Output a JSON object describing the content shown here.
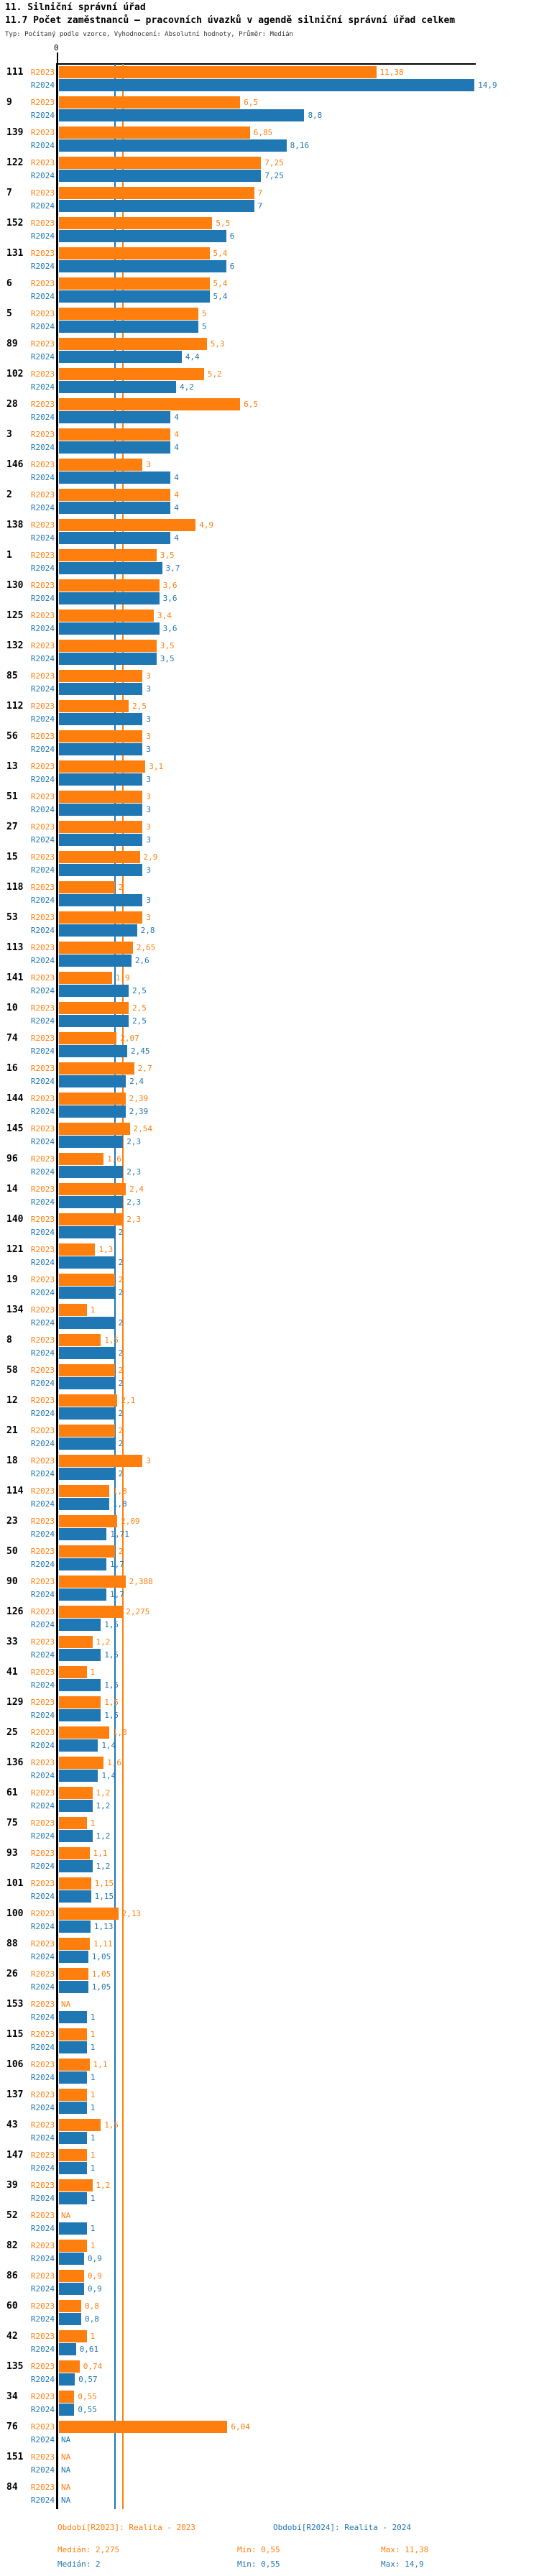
{
  "header": {
    "title": "11. Silniční správní úřad",
    "subtitle": "11.7 Počet zaměstnanců – pracovních úvazků v agendě silniční správní úřad celkem",
    "meta": "Typ: Počítaný podle vzorce, Vyhodnocení: Absolutní hodnoty, Průměr: Medián"
  },
  "chart_data": {
    "type": "bar",
    "orientation": "horizontal",
    "xlim": [
      0,
      15
    ],
    "zero_label": "0",
    "grid": false,
    "legend_position": "bottom",
    "series": [
      {
        "name": "R2023",
        "color": "#ff7f0e",
        "median": 2.275,
        "min": 0.55,
        "max": 11.38
      },
      {
        "name": "R2024",
        "color": "#1f77b4",
        "median": 2.0,
        "min": 0.55,
        "max": 14.9
      }
    ],
    "rows": [
      {
        "id": "111",
        "values": [
          11.38,
          14.9
        ],
        "labels": [
          "11,38",
          "14,9"
        ]
      },
      {
        "id": "9",
        "values": [
          6.5,
          8.8
        ],
        "labels": [
          "6,5",
          "8,8"
        ]
      },
      {
        "id": "139",
        "values": [
          6.85,
          8.16
        ],
        "labels": [
          "6,85",
          "8,16"
        ]
      },
      {
        "id": "122",
        "values": [
          7.25,
          7.25
        ],
        "labels": [
          "7,25",
          "7,25"
        ]
      },
      {
        "id": "7",
        "values": [
          7,
          7
        ],
        "labels": [
          "7",
          "7"
        ]
      },
      {
        "id": "152",
        "values": [
          5.5,
          6
        ],
        "labels": [
          "5,5",
          "6"
        ]
      },
      {
        "id": "131",
        "values": [
          5.4,
          6
        ],
        "labels": [
          "5,4",
          "6"
        ]
      },
      {
        "id": "6",
        "values": [
          5.4,
          5.4
        ],
        "labels": [
          "5,4",
          "5,4"
        ]
      },
      {
        "id": "5",
        "values": [
          5,
          5
        ],
        "labels": [
          "5",
          "5"
        ]
      },
      {
        "id": "89",
        "values": [
          5.3,
          4.4
        ],
        "labels": [
          "5,3",
          "4,4"
        ]
      },
      {
        "id": "102",
        "values": [
          5.2,
          4.2
        ],
        "labels": [
          "5,2",
          "4,2"
        ]
      },
      {
        "id": "28",
        "values": [
          6.5,
          4
        ],
        "labels": [
          "6,5",
          "4"
        ]
      },
      {
        "id": "3",
        "values": [
          4,
          4
        ],
        "labels": [
          "4",
          "4"
        ]
      },
      {
        "id": "146",
        "values": [
          3,
          4
        ],
        "labels": [
          "3",
          "4"
        ]
      },
      {
        "id": "2",
        "values": [
          4,
          4
        ],
        "labels": [
          "4",
          "4"
        ]
      },
      {
        "id": "138",
        "values": [
          4.9,
          4
        ],
        "labels": [
          "4,9",
          "4"
        ]
      },
      {
        "id": "1",
        "values": [
          3.5,
          3.7
        ],
        "labels": [
          "3,5",
          "3,7"
        ]
      },
      {
        "id": "130",
        "values": [
          3.6,
          3.6
        ],
        "labels": [
          "3,6",
          "3,6"
        ]
      },
      {
        "id": "125",
        "values": [
          3.4,
          3.6
        ],
        "labels": [
          "3,4",
          "3,6"
        ]
      },
      {
        "id": "132",
        "values": [
          3.5,
          3.5
        ],
        "labels": [
          "3,5",
          "3,5"
        ]
      },
      {
        "id": "85",
        "values": [
          3,
          3
        ],
        "labels": [
          "3",
          "3"
        ]
      },
      {
        "id": "112",
        "values": [
          2.5,
          3
        ],
        "labels": [
          "2,5",
          "3"
        ]
      },
      {
        "id": "56",
        "values": [
          3,
          3
        ],
        "labels": [
          "3",
          "3"
        ]
      },
      {
        "id": "13",
        "values": [
          3.1,
          3
        ],
        "labels": [
          "3,1",
          "3"
        ]
      },
      {
        "id": "51",
        "values": [
          3,
          3
        ],
        "labels": [
          "3",
          "3"
        ]
      },
      {
        "id": "27",
        "values": [
          3,
          3
        ],
        "labels": [
          "3",
          "3"
        ]
      },
      {
        "id": "15",
        "values": [
          2.9,
          3
        ],
        "labels": [
          "2,9",
          "3"
        ]
      },
      {
        "id": "118",
        "values": [
          2,
          3
        ],
        "labels": [
          "2",
          "3"
        ]
      },
      {
        "id": "53",
        "values": [
          3,
          2.8
        ],
        "labels": [
          "3",
          "2,8"
        ]
      },
      {
        "id": "113",
        "values": [
          2.65,
          2.6
        ],
        "labels": [
          "2,65",
          "2,6"
        ]
      },
      {
        "id": "141",
        "values": [
          1.9,
          2.5
        ],
        "labels": [
          "1,9",
          "2,5"
        ]
      },
      {
        "id": "10",
        "values": [
          2.5,
          2.5
        ],
        "labels": [
          "2,5",
          "2,5"
        ]
      },
      {
        "id": "74",
        "values": [
          2.07,
          2.45
        ],
        "labels": [
          "2,07",
          "2,45"
        ]
      },
      {
        "id": "16",
        "values": [
          2.7,
          2.4
        ],
        "labels": [
          "2,7",
          "2,4"
        ]
      },
      {
        "id": "144",
        "values": [
          2.39,
          2.39
        ],
        "labels": [
          "2,39",
          "2,39"
        ]
      },
      {
        "id": "145",
        "values": [
          2.54,
          2.3
        ],
        "labels": [
          "2,54",
          "2,3"
        ]
      },
      {
        "id": "96",
        "values": [
          1.6,
          2.3
        ],
        "labels": [
          "1,6",
          "2,3"
        ]
      },
      {
        "id": "14",
        "values": [
          2.4,
          2.3
        ],
        "labels": [
          "2,4",
          "2,3"
        ]
      },
      {
        "id": "140",
        "values": [
          2.3,
          2
        ],
        "labels": [
          "2,3",
          "2"
        ]
      },
      {
        "id": "121",
        "values": [
          1.3,
          2
        ],
        "labels": [
          "1,3",
          "2"
        ]
      },
      {
        "id": "19",
        "values": [
          2,
          2
        ],
        "labels": [
          "2",
          "2"
        ]
      },
      {
        "id": "134",
        "values": [
          1,
          2
        ],
        "labels": [
          "1",
          "2"
        ]
      },
      {
        "id": "8",
        "values": [
          1.5,
          2
        ],
        "labels": [
          "1,5",
          "2"
        ]
      },
      {
        "id": "58",
        "values": [
          2,
          2
        ],
        "labels": [
          "2",
          "2"
        ]
      },
      {
        "id": "12",
        "values": [
          2.1,
          2
        ],
        "labels": [
          "2,1",
          "2"
        ]
      },
      {
        "id": "21",
        "values": [
          2,
          2
        ],
        "labels": [
          "2",
          "2"
        ]
      },
      {
        "id": "18",
        "values": [
          3,
          2
        ],
        "labels": [
          "3",
          "2"
        ]
      },
      {
        "id": "114",
        "values": [
          1.8,
          1.8
        ],
        "labels": [
          "1,8",
          "1,8"
        ]
      },
      {
        "id": "23",
        "values": [
          2.09,
          1.71
        ],
        "labels": [
          "2,09",
          "1,71"
        ]
      },
      {
        "id": "50",
        "values": [
          2,
          1.7
        ],
        "labels": [
          "2",
          "1,7"
        ]
      },
      {
        "id": "90",
        "values": [
          2.388,
          1.7
        ],
        "labels": [
          "2,388",
          "1,7"
        ]
      },
      {
        "id": "126",
        "values": [
          2.275,
          1.5
        ],
        "labels": [
          "2,275",
          "1,5"
        ]
      },
      {
        "id": "33",
        "values": [
          1.2,
          1.5
        ],
        "labels": [
          "1,2",
          "1,5"
        ]
      },
      {
        "id": "41",
        "values": [
          1,
          1.5
        ],
        "labels": [
          "1",
          "1,5"
        ]
      },
      {
        "id": "129",
        "values": [
          1.5,
          1.5
        ],
        "labels": [
          "1,5",
          "1,5"
        ]
      },
      {
        "id": "25",
        "values": [
          1.8,
          1.4
        ],
        "labels": [
          "1,8",
          "1,4"
        ]
      },
      {
        "id": "136",
        "values": [
          1.6,
          1.4
        ],
        "labels": [
          "1,6",
          "1,4"
        ]
      },
      {
        "id": "61",
        "values": [
          1.2,
          1.2
        ],
        "labels": [
          "1,2",
          "1,2"
        ]
      },
      {
        "id": "75",
        "values": [
          1,
          1.2
        ],
        "labels": [
          "1",
          "1,2"
        ]
      },
      {
        "id": "93",
        "values": [
          1.1,
          1.2
        ],
        "labels": [
          "1,1",
          "1,2"
        ]
      },
      {
        "id": "101",
        "values": [
          1.15,
          1.15
        ],
        "labels": [
          "1,15",
          "1,15"
        ]
      },
      {
        "id": "100",
        "values": [
          2.13,
          1.13
        ],
        "labels": [
          "2,13",
          "1,13"
        ]
      },
      {
        "id": "88",
        "values": [
          1.11,
          1.05
        ],
        "labels": [
          "1,11",
          "1,05"
        ]
      },
      {
        "id": "26",
        "values": [
          1.05,
          1.05
        ],
        "labels": [
          "1,05",
          "1,05"
        ]
      },
      {
        "id": "153",
        "values": [
          null,
          1
        ],
        "labels": [
          "NA",
          "1"
        ]
      },
      {
        "id": "115",
        "values": [
          1,
          1
        ],
        "labels": [
          "1",
          "1"
        ]
      },
      {
        "id": "106",
        "values": [
          1.1,
          1
        ],
        "labels": [
          "1,1",
          "1"
        ]
      },
      {
        "id": "137",
        "values": [
          1,
          1
        ],
        "labels": [
          "1",
          "1"
        ]
      },
      {
        "id": "43",
        "values": [
          1.5,
          1
        ],
        "labels": [
          "1,5",
          "1"
        ]
      },
      {
        "id": "147",
        "values": [
          1,
          1
        ],
        "labels": [
          "1",
          "1"
        ]
      },
      {
        "id": "39",
        "values": [
          1.2,
          1
        ],
        "labels": [
          "1,2",
          "1"
        ]
      },
      {
        "id": "52",
        "values": [
          null,
          1
        ],
        "labels": [
          "NA",
          "1"
        ]
      },
      {
        "id": "82",
        "values": [
          1,
          0.9
        ],
        "labels": [
          "1",
          "0,9"
        ]
      },
      {
        "id": "86",
        "values": [
          0.9,
          0.9
        ],
        "labels": [
          "0,9",
          "0,9"
        ]
      },
      {
        "id": "60",
        "values": [
          0.8,
          0.8
        ],
        "labels": [
          "0,8",
          "0,8"
        ]
      },
      {
        "id": "42",
        "values": [
          1,
          0.61
        ],
        "labels": [
          "1",
          "0,61"
        ]
      },
      {
        "id": "135",
        "values": [
          0.74,
          0.57
        ],
        "labels": [
          "0,74",
          "0,57"
        ]
      },
      {
        "id": "34",
        "values": [
          0.55,
          0.55
        ],
        "labels": [
          "0,55",
          "0,55"
        ]
      },
      {
        "id": "76",
        "values": [
          6.04,
          null
        ],
        "labels": [
          "6,04",
          "NA"
        ]
      },
      {
        "id": "151",
        "values": [
          null,
          null
        ],
        "labels": [
          "NA",
          "NA"
        ]
      },
      {
        "id": "84",
        "values": [
          null,
          null
        ],
        "labels": [
          "NA",
          "NA"
        ]
      }
    ]
  },
  "footer": {
    "period_2023": "Období[R2023]: Realita - 2023",
    "period_2024": "Období[R2024]: Realita - 2024",
    "median_2023": "Medián: 2,275",
    "median_2024": "Medián: 2",
    "min_2023": "Min: 0,55",
    "min_2024": "Min: 0,55",
    "max_2023": "Max: 11,38",
    "max_2024": "Max: 14,9"
  }
}
